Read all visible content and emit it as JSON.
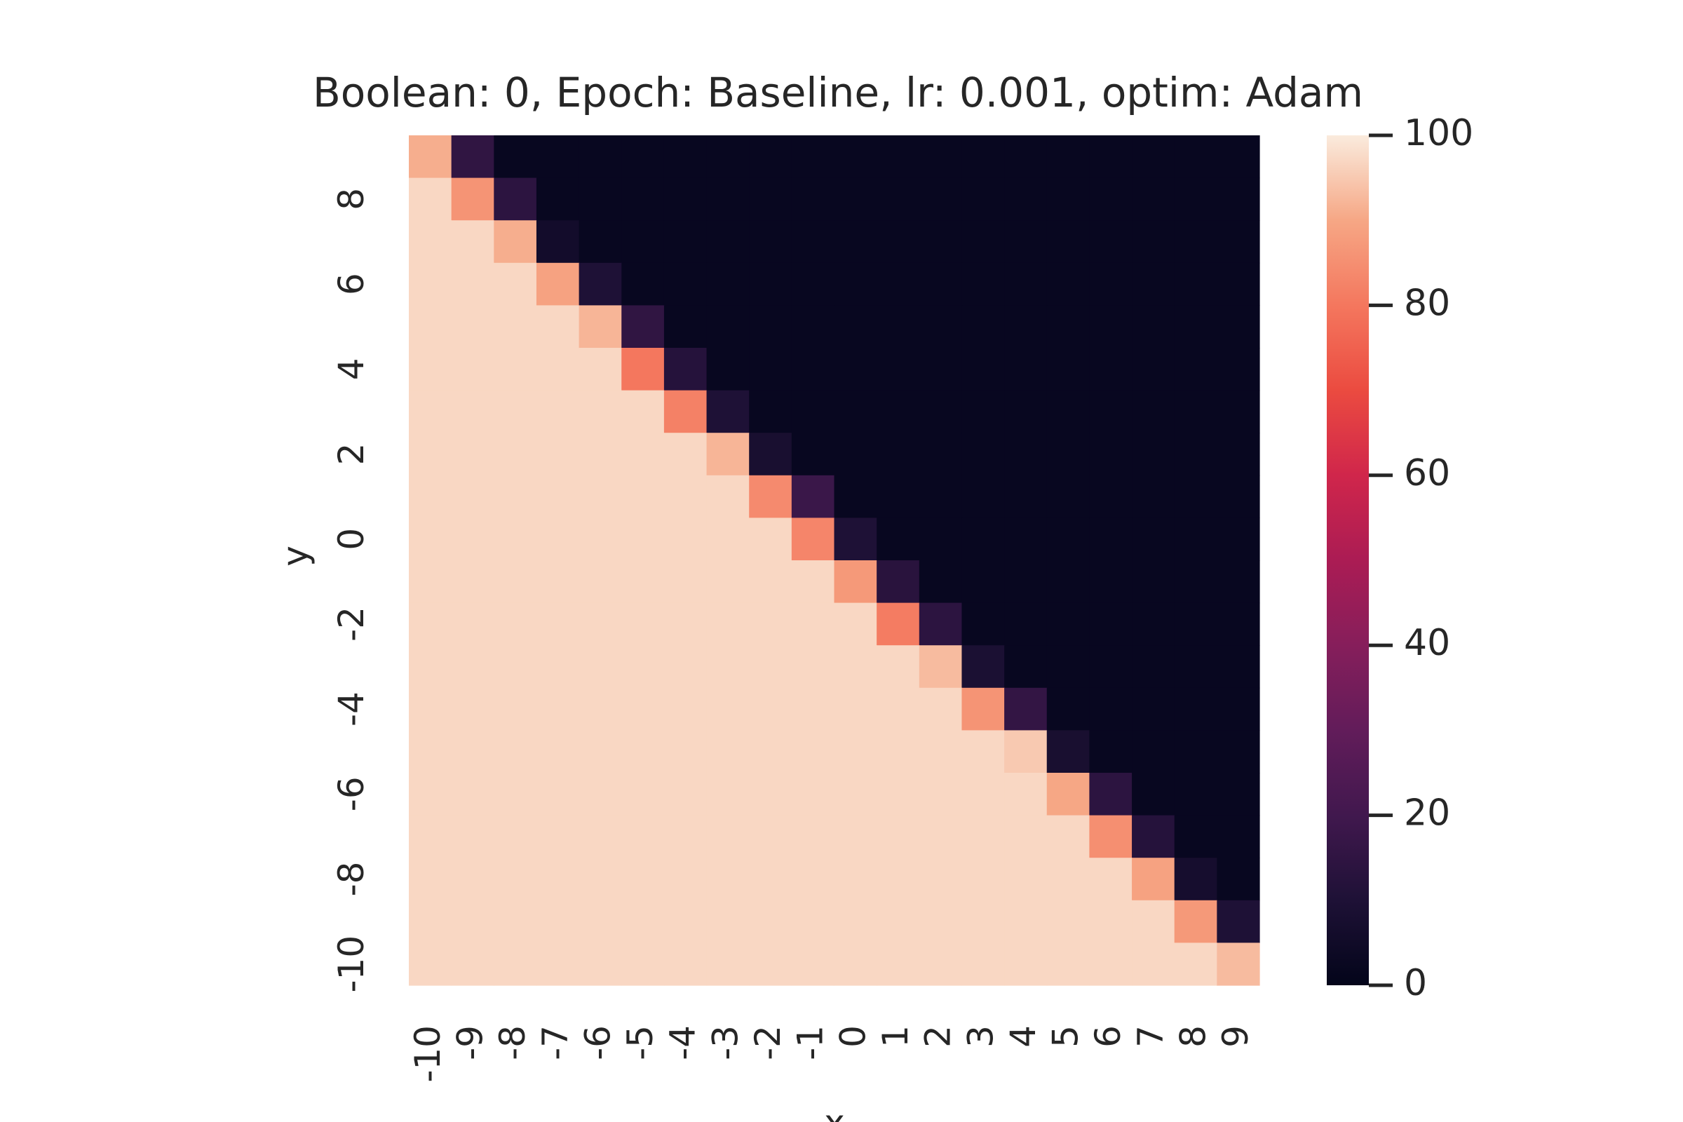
{
  "chart_data": {
    "type": "heatmap",
    "title": "Boolean: 0, Epoch: Baseline, lr: 0.001, optim: Adam",
    "xlabel": "x",
    "ylabel": "y",
    "x": [
      -10,
      -9,
      -8,
      -7,
      -6,
      -5,
      -4,
      -3,
      -2,
      -1,
      0,
      1,
      2,
      3,
      4,
      5,
      6,
      7,
      8,
      9
    ],
    "y": [
      9,
      8,
      7,
      6,
      5,
      4,
      3,
      2,
      1,
      0,
      -1,
      -2,
      -3,
      -4,
      -5,
      -6,
      -7,
      -8,
      -9,
      -10
    ],
    "x_tick_labels": [
      "-10",
      "-9",
      "-8",
      "-7",
      "-6",
      "-5",
      "-4",
      "-3",
      "-2",
      "-1",
      "0",
      "1",
      "2",
      "3",
      "4",
      "5",
      "6",
      "7",
      "8",
      "9"
    ],
    "y_tick_labels": [
      "8",
      "6",
      "4",
      "2",
      "0",
      "-2",
      "-4",
      "-6",
      "-8",
      "-10"
    ],
    "y_tick_values": [
      8,
      6,
      4,
      2,
      0,
      -2,
      -4,
      -6,
      -8,
      -10
    ],
    "diagonal_values": [
      91,
      86,
      91,
      89,
      92,
      80,
      82,
      92,
      84,
      83,
      87,
      81,
      93,
      86,
      95,
      90,
      85,
      89,
      87,
      93
    ],
    "superdiagonal_values": [
      15,
      14,
      6,
      10,
      15,
      12,
      10,
      8,
      18,
      10,
      13,
      14,
      9,
      16,
      8,
      14,
      12,
      7,
      10
    ],
    "below_value": 97,
    "above_value": 2,
    "colorbar": {
      "min": 0,
      "max": 100,
      "ticks": [
        "0",
        "20",
        "40",
        "60",
        "80",
        "100"
      ],
      "tick_values": [
        0,
        20,
        40,
        60,
        80,
        100
      ]
    },
    "colormap": "rocket",
    "grid": false
  }
}
